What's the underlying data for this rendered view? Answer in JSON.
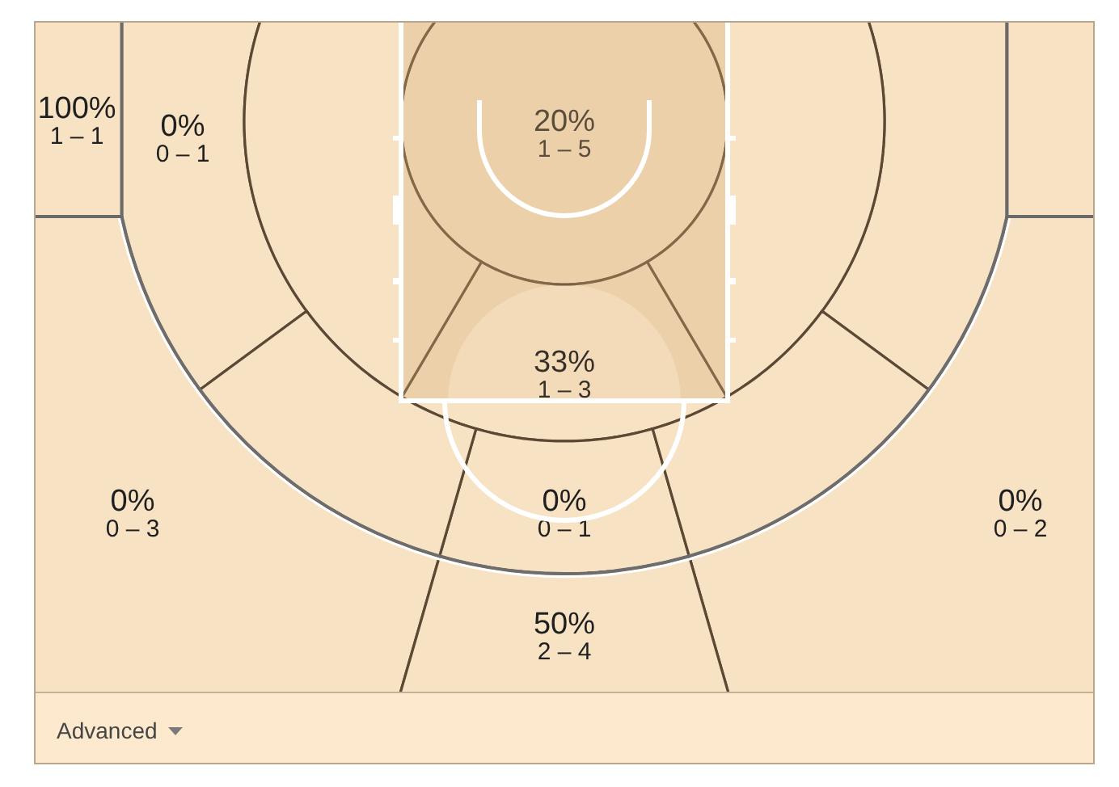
{
  "chart_data": {
    "type": "other",
    "categories": [
      "1 – 1",
      "0 – 1",
      "1 – 5",
      "1 – 3",
      "0 – 3",
      "0 – 1",
      "0 – 2",
      "2 – 4",
      null,
      null,
      null,
      null,
      null,
      null
    ],
    "values": [
      100,
      0,
      20,
      33,
      0,
      0,
      0,
      50,
      null,
      null,
      null,
      null,
      null,
      null
    ],
    "value_labels": [
      "100%",
      "0%",
      "20%",
      "33%",
      "0%",
      "0%",
      "0%",
      "50%",
      null,
      null,
      null,
      null,
      null,
      null
    ],
    "color": "#f7e2c4",
    "annotations": [
      "Advanced"
    ]
  }
}
